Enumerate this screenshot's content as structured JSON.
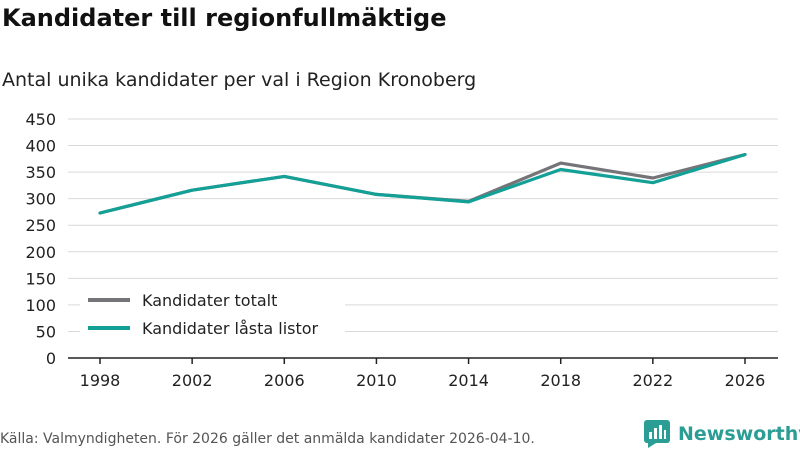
{
  "title": "Kandidater till regionfullmäktige",
  "subtitle": "Antal unika kandidater per val i Region Kronoberg",
  "source": "Källa: Valmyndigheten. För 2026 gäller det anmälda kandidater 2026-04-10.",
  "brand": {
    "name": "Newsworthy",
    "icon": "bar-chart-logo-icon"
  },
  "colors": {
    "totalt": "#757479",
    "lasta": "#13a096",
    "grid": "#d9d9d9",
    "axis": "#222222",
    "brand": "#2a9d94"
  },
  "chart_data": {
    "type": "line",
    "title": "Kandidater till regionfullmäktige",
    "subtitle": "Antal unika kandidater per val i Region Kronoberg",
    "x": [
      "1998",
      "2002",
      "2006",
      "2010",
      "2014",
      "2018",
      "2022",
      "2026"
    ],
    "ylim": [
      0,
      450
    ],
    "yticks": [
      "0",
      "50",
      "100",
      "150",
      "200",
      "250",
      "300",
      "350",
      "400",
      "450"
    ],
    "grid": true,
    "legend_position": "bottom-left",
    "series": [
      {
        "name": "Kandidater totalt",
        "values": [
          273,
          316,
          342,
          308,
          295,
          367,
          339,
          383
        ]
      },
      {
        "name": "Kandidater låsta listor",
        "values": [
          273,
          316,
          342,
          308,
          294,
          355,
          330,
          383
        ]
      }
    ]
  }
}
